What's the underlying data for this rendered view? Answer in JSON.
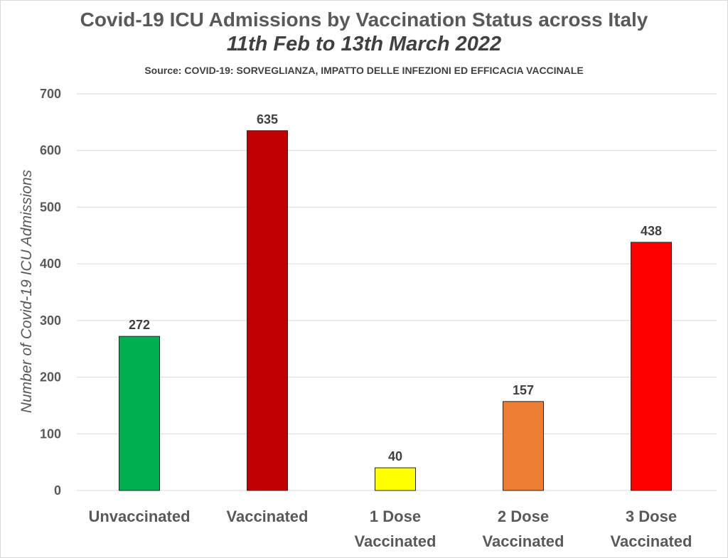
{
  "chart_data": {
    "type": "bar",
    "title": "Covid-19 ICU Admissions by Vaccination Status across Italy",
    "subtitle": "11th Feb to 13th March 2022",
    "source": "Source: COVID-19: SORVEGLIANZA, IMPATTO DELLE INFEZIONI ED EFFICACIA VACCINALE",
    "xlabel": "",
    "ylabel": "Number of Covid-19 ICU Admissions",
    "ylim": [
      0,
      700
    ],
    "yticks": [
      0,
      100,
      200,
      300,
      400,
      500,
      600,
      700
    ],
    "grid": true,
    "legend": "none",
    "categories": [
      [
        "Unvaccinated"
      ],
      [
        "Vaccinated"
      ],
      [
        "1 Dose",
        "Vaccinated"
      ],
      [
        "2 Dose",
        "Vaccinated"
      ],
      [
        "3 Dose",
        "Vaccinated"
      ]
    ],
    "values": [
      272,
      635,
      40,
      157,
      438
    ],
    "colors": [
      "#00b050",
      "#c00000",
      "#ffff00",
      "#ed7d31",
      "#ff0000"
    ]
  }
}
